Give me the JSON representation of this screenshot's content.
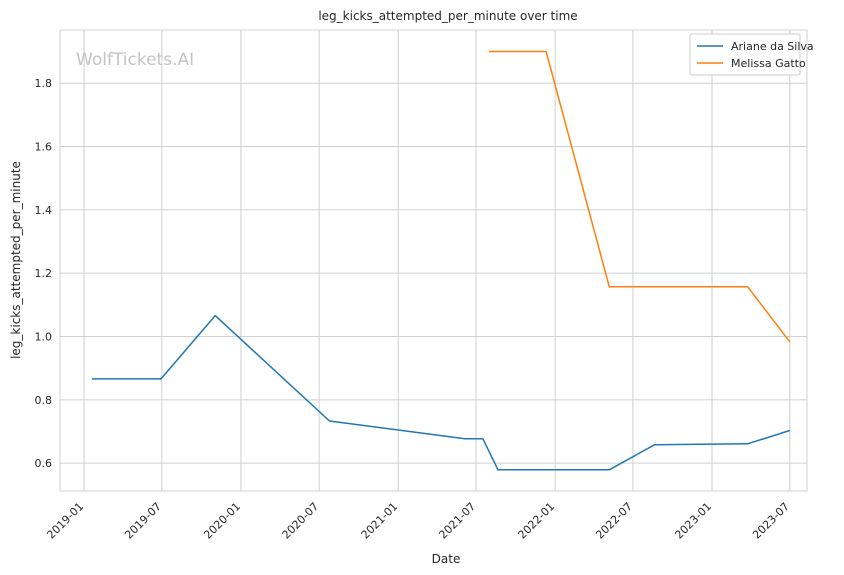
{
  "chart_data": {
    "type": "line",
    "title": "leg_kicks_attempted_per_minute over time",
    "xlabel": "Date",
    "ylabel": "leg_kicks_attempted_per_minute",
    "watermark": "WolfTickets.AI",
    "x_ticks": [
      "2019-01",
      "2019-07",
      "2020-01",
      "2020-07",
      "2021-01",
      "2021-07",
      "2022-01",
      "2022-07",
      "2023-01",
      "2023-07"
    ],
    "y_ticks": [
      "0.6",
      "0.8",
      "1.0",
      "1.2",
      "1.4",
      "1.6",
      "1.8"
    ],
    "xlim": [
      "2018-11-06",
      "2023-08-10"
    ],
    "ylim": [
      0.512,
      1.968
    ],
    "grid": true,
    "legend_position": "top-right",
    "series": [
      {
        "name": "Ariane da Silva",
        "color": "#1f77b4",
        "x": [
          "2019-01-19",
          "2019-06-29",
          "2019-11-02",
          "2020-07-25",
          "2021-06-05",
          "2021-07-17",
          "2021-08-21",
          "2022-05-07",
          "2022-08-20",
          "2023-03-25",
          "2023-07-01"
        ],
        "y": [
          0.866,
          0.866,
          1.066,
          0.733,
          0.677,
          0.677,
          0.579,
          0.579,
          0.658,
          0.661,
          0.703
        ]
      },
      {
        "name": "Melissa Gatto",
        "color": "#ff7f0e",
        "x": [
          "2021-07-31",
          "2021-12-11",
          "2022-05-07",
          "2023-03-25",
          "2023-07-01"
        ],
        "y": [
          1.9,
          1.9,
          1.157,
          1.157,
          0.983
        ]
      }
    ]
  }
}
